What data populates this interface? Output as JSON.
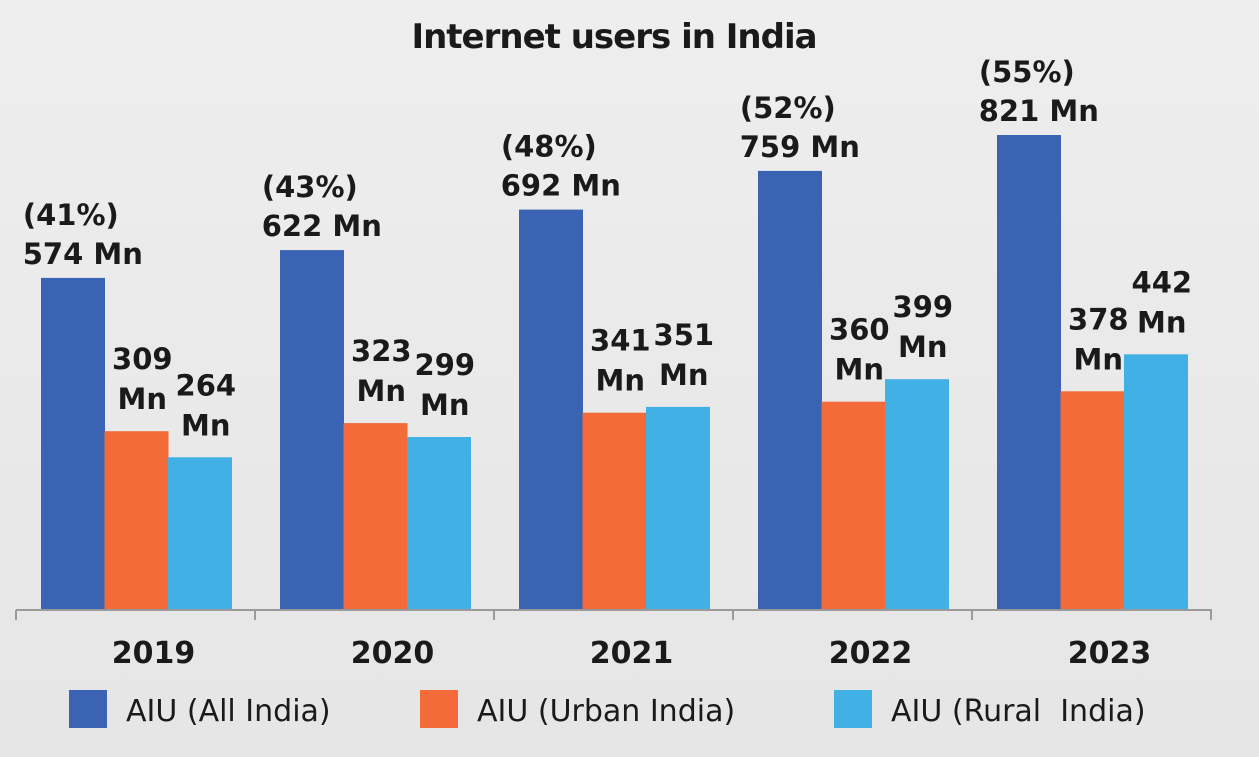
{
  "chart_data": {
    "type": "bar",
    "title": "Internet users in India",
    "categories": [
      "2019",
      "2020",
      "2021",
      "2022",
      "2023"
    ],
    "unit": "Mn",
    "ylim": [
      0,
      821
    ],
    "grid": false,
    "legend_position": "bottom",
    "series": [
      {
        "name": "AIU (All India)",
        "color": "#3b63b3",
        "values": [
          574,
          622,
          692,
          759,
          821
        ],
        "labels": [
          "574 Mn",
          "622 Mn",
          "692 Mn",
          "759 Mn",
          "821 Mn"
        ],
        "pct_labels": [
          "(41%)",
          "(43%)",
          "(48%)",
          "(52%)",
          "(55%)"
        ]
      },
      {
        "name": "AIU (Urban India)",
        "color": "#f26b38",
        "values": [
          309,
          323,
          341,
          360,
          378
        ],
        "labels": [
          "309",
          "323",
          "341",
          "360",
          "378"
        ],
        "unit_labels": [
          "Mn",
          "Mn",
          "Mn",
          "Mn",
          "Mn"
        ]
      },
      {
        "name": "AIU (Rural  India)",
        "color": "#41b0e4",
        "values": [
          264,
          299,
          351,
          399,
          442
        ],
        "labels": [
          "264",
          "299",
          "351",
          "399",
          "442"
        ],
        "unit_labels": [
          "Mn",
          "Mn",
          "Mn",
          "Mn",
          "Mn"
        ]
      }
    ]
  }
}
